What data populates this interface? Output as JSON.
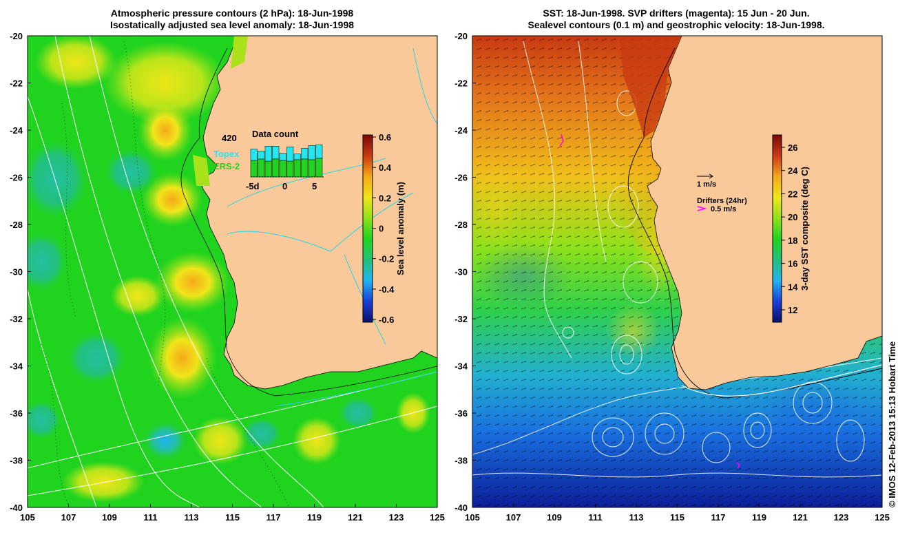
{
  "left_panel": {
    "title_line1": "Atmospheric pressure contours (2 hPa): 18-Jun-1998",
    "title_line2": "Isostatically adjusted sea level anomaly: 18-Jun-1998",
    "colorbar_label": "Sea level anomaly (m)",
    "colorbar_ticks": [
      "0.6",
      "0.4",
      "0.2",
      "0",
      "-0.2",
      "-0.4",
      "-0.6"
    ],
    "colorbar_colors": [
      "#08106a",
      "#1a3fd8",
      "#1fb4f2",
      "#22c07a",
      "#1fd31f",
      "#8ee21a",
      "#f0e61a",
      "#f5a81a",
      "#c83a12",
      "#7a0808"
    ],
    "data_count": {
      "title": "Data count",
      "max_label": "420",
      "series": [
        "Topex",
        "ERS-2"
      ],
      "series_colors": [
        "#22e6f0",
        "#1fd31f"
      ],
      "x_labels": [
        "-5d",
        "0",
        "5"
      ]
    },
    "land_color": "#f9c99a"
  },
  "right_panel": {
    "title_line1": "SST: 18-Jun-1998. SVP drifters (magenta): 15 Jun - 20 Jun.",
    "title_line2": "Sealevel contours (0.1 m) and geostrophic velocity: 18-Jun-1998.",
    "colorbar_label": "3-day SST composite (deg C)",
    "colorbar_ticks": [
      "26",
      "24",
      "22",
      "20",
      "18",
      "16",
      "14",
      "12"
    ],
    "colorbar_colors": [
      "#08106a",
      "#1a3fd8",
      "#1fb4f2",
      "#22c07a",
      "#1fd31f",
      "#8ee21a",
      "#f0e61a",
      "#f5a81a",
      "#c83a12",
      "#7a0808"
    ],
    "velocity_scale": "1 m/s",
    "drifters_label": "Drifters (24hr)",
    "drifter_scale": "0.5 m/s",
    "drifter_color": "#ff00ff"
  },
  "axes": {
    "lon_ticks": [
      "105",
      "107",
      "109",
      "111",
      "113",
      "115",
      "117",
      "119",
      "121",
      "123",
      "125"
    ],
    "lat_ticks": [
      "-20",
      "-22",
      "-24",
      "-26",
      "-28",
      "-30",
      "-32",
      "-34",
      "-36",
      "-38",
      "-40"
    ]
  },
  "credit": "© IMOS 12-Feb-2013 15:13 Hobart Time"
}
